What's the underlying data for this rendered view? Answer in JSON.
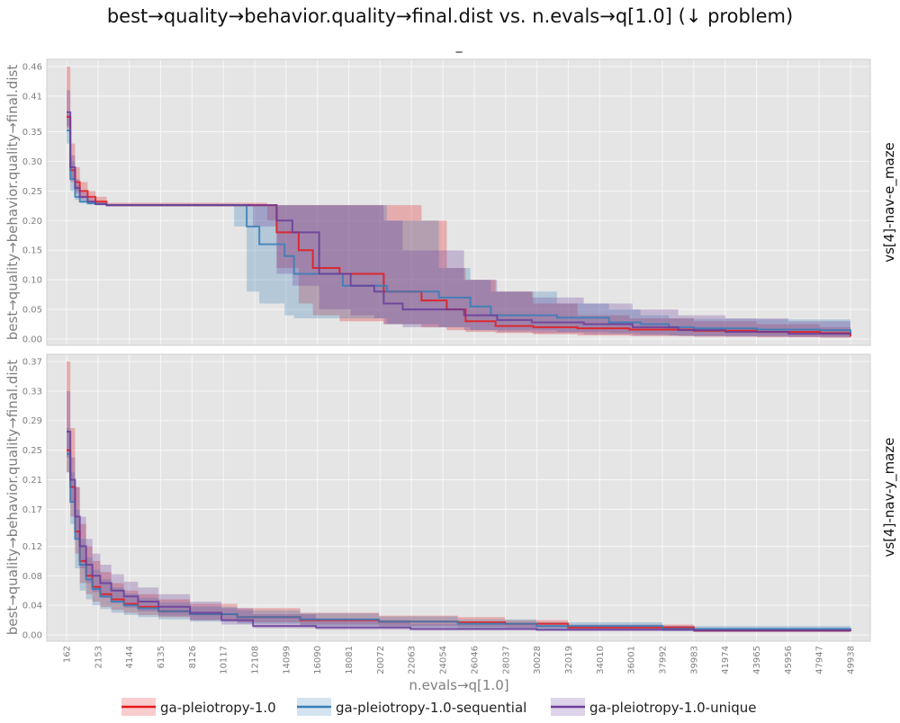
{
  "title": "best→quality→behavior.quality→final.dist vs. n.evals→q[1.0] (↓ problem)",
  "subtitle": "_",
  "colors": {
    "panel_bg": "#e5e5e5",
    "grid": "#f7f7f7",
    "axis_text": "#7f7f7f",
    "series": [
      "#e41a1c",
      "#377eb8",
      "#6a3d9a"
    ]
  },
  "chart_data": {
    "type": "line",
    "xlabel": "n.evals→q[1.0]",
    "ylabel": "best→quality→behavior.quality→final.dist",
    "xlim": [
      162,
      49938
    ],
    "x_ticks": [
      "162",
      "2153",
      "4144",
      "6135",
      "8126",
      "10117",
      "12108",
      "14099",
      "16090",
      "18081",
      "20072",
      "22063",
      "24054",
      "26046",
      "28037",
      "30028",
      "32019",
      "34010",
      "36001",
      "37992",
      "39983",
      "41974",
      "43965",
      "45956",
      "47947",
      "49938"
    ],
    "grid": true,
    "legend_position": "bottom",
    "legend": [
      "ga-pleiotropy-1.0",
      "ga-pleiotropy-1.0-sequential",
      "ga-pleiotropy-1.0-unique"
    ],
    "facets": [
      {
        "label": "vs[4]-nav-e_maze",
        "ylim": [
          0,
          0.46
        ],
        "y_ticks": [
          "0.00",
          "0.05",
          "0.10",
          "0.15",
          "0.20",
          "0.25",
          "0.30",
          "0.35",
          "0.41",
          "0.46"
        ],
        "series": [
          {
            "name": "ga-pleiotropy-1.0",
            "x": [
              162,
              400,
              700,
              1000,
              1500,
              2000,
              2700,
              12900,
              13500,
              14900,
              15800,
              17500,
              20300,
              22700,
              24300,
              25500,
              27400,
              29800,
              32600,
              35900,
              40000,
              44000,
              48000,
              49938
            ],
            "y": [
              0.375,
              0.285,
              0.265,
              0.25,
              0.24,
              0.232,
              0.226,
              0.226,
              0.18,
              0.15,
              0.12,
              0.11,
              0.08,
              0.065,
              0.05,
              0.03,
              0.022,
              0.02,
              0.018,
              0.016,
              0.014,
              0.012,
              0.01,
              0.004
            ],
            "lo": [
              0.355,
              0.265,
              0.25,
              0.238,
              0.23,
              0.226,
              0.224,
              0.2,
              0.12,
              0.06,
              0.04,
              0.03,
              0.025,
              0.02,
              0.015,
              0.012,
              0.01,
              0.008,
              0.006,
              0.005,
              0.004,
              0.003,
              0.002,
              0.002
            ],
            "hi": [
              0.46,
              0.33,
              0.29,
              0.265,
              0.25,
              0.24,
              0.23,
              0.226,
              0.226,
              0.226,
              0.226,
              0.226,
              0.226,
              0.2,
              0.12,
              0.1,
              0.08,
              0.06,
              0.04,
              0.035,
              0.03,
              0.025,
              0.02,
              0.015
            ]
          },
          {
            "name": "ga-pleiotropy-1.0-sequential",
            "x": [
              162,
              400,
              700,
              1000,
              1500,
              2000,
              2700,
              10800,
              11600,
              12400,
              14000,
              14600,
              17700,
              20500,
              23800,
              25800,
              27100,
              31300,
              34600,
              36600,
              38400,
              40000,
              44000,
              48000,
              49938
            ],
            "y": [
              0.352,
              0.27,
              0.24,
              0.232,
              0.229,
              0.228,
              0.226,
              0.226,
              0.19,
              0.16,
              0.14,
              0.11,
              0.09,
              0.08,
              0.07,
              0.055,
              0.04,
              0.036,
              0.028,
              0.025,
              0.02,
              0.018,
              0.016,
              0.015,
              0.01
            ],
            "lo": [
              0.33,
              0.25,
              0.235,
              0.229,
              0.227,
              0.226,
              0.225,
              0.19,
              0.08,
              0.06,
              0.04,
              0.035,
              0.035,
              0.025,
              0.02,
              0.015,
              0.015,
              0.012,
              0.01,
              0.008,
              0.006,
              0.005,
              0.005,
              0.004,
              0.004
            ],
            "hi": [
              0.38,
              0.3,
              0.26,
              0.24,
              0.232,
              0.23,
              0.228,
              0.226,
              0.226,
              0.226,
              0.226,
              0.226,
              0.226,
              0.2,
              0.12,
              0.1,
              0.08,
              0.06,
              0.05,
              0.04,
              0.035,
              0.034,
              0.033,
              0.033,
              0.033
            ]
          },
          {
            "name": "ga-pleiotropy-1.0-unique",
            "x": [
              162,
              400,
              700,
              1000,
              1500,
              2000,
              2700,
              12000,
              13500,
              14500,
              16200,
              18200,
              19700,
              20300,
              21500,
              25400,
              27500,
              29700,
              33000,
              36100,
              39000,
              42000,
              46000,
              49938
            ],
            "y": [
              0.383,
              0.29,
              0.255,
              0.24,
              0.232,
              0.228,
              0.226,
              0.226,
              0.2,
              0.18,
              0.11,
              0.09,
              0.08,
              0.06,
              0.05,
              0.04,
              0.032,
              0.028,
              0.025,
              0.02,
              0.015,
              0.012,
              0.009,
              0.008
            ],
            "lo": [
              0.36,
              0.27,
              0.245,
              0.235,
              0.228,
              0.226,
              0.224,
              0.19,
              0.11,
              0.09,
              0.05,
              0.04,
              0.035,
              0.025,
              0.02,
              0.015,
              0.012,
              0.01,
              0.008,
              0.006,
              0.005,
              0.004,
              0.003,
              0.003
            ],
            "hi": [
              0.42,
              0.31,
              0.27,
              0.25,
              0.238,
              0.232,
              0.228,
              0.226,
              0.226,
              0.226,
              0.226,
              0.226,
              0.226,
              0.2,
              0.15,
              0.1,
              0.08,
              0.07,
              0.06,
              0.05,
              0.04,
              0.035,
              0.03,
              0.02
            ]
          }
        ]
      },
      {
        "label": "vs[4]-nav-y_maze",
        "ylim": [
          0,
          0.37
        ],
        "y_ticks": [
          "0.00",
          "0.04",
          "0.08",
          "0.12",
          "0.17",
          "0.21",
          "0.25",
          "0.29",
          "0.33",
          "0.37"
        ],
        "series": [
          {
            "name": "ga-pleiotropy-1.0",
            "x": [
              162,
              400,
              700,
              1000,
              1400,
              1800,
              2300,
              3000,
              3800,
              4700,
              6000,
              8000,
              11000,
              15000,
              20000,
              25000,
              28000,
              32000,
              40000,
              49938
            ],
            "y": [
              0.25,
              0.2,
              0.14,
              0.1,
              0.08,
              0.065,
              0.055,
              0.048,
              0.042,
              0.038,
              0.032,
              0.028,
              0.024,
              0.02,
              0.018,
              0.017,
              0.015,
              0.01,
              0.006,
              0.005
            ],
            "lo": [
              0.22,
              0.16,
              0.11,
              0.07,
              0.055,
              0.045,
              0.038,
              0.034,
              0.03,
              0.027,
              0.024,
              0.02,
              0.017,
              0.014,
              0.012,
              0.011,
              0.01,
              0.007,
              0.004,
              0.003
            ],
            "hi": [
              0.37,
              0.28,
              0.2,
              0.15,
              0.12,
              0.1,
              0.085,
              0.07,
              0.06,
              0.055,
              0.048,
              0.042,
              0.036,
              0.03,
              0.026,
              0.024,
              0.02,
              0.014,
              0.009,
              0.007
            ]
          },
          {
            "name": "ga-pleiotropy-1.0-sequential",
            "x": [
              162,
              400,
              700,
              1000,
              1400,
              1800,
              2300,
              3000,
              3800,
              4700,
              6000,
              8000,
              11000,
              15000,
              20000,
              25000,
              30000,
              38000,
              49938
            ],
            "y": [
              0.245,
              0.18,
              0.13,
              0.095,
              0.075,
              0.062,
              0.052,
              0.045,
              0.04,
              0.036,
              0.032,
              0.028,
              0.024,
              0.021,
              0.018,
              0.015,
              0.012,
              0.008,
              0.006
            ],
            "lo": [
              0.22,
              0.15,
              0.09,
              0.06,
              0.048,
              0.04,
              0.035,
              0.03,
              0.027,
              0.024,
              0.021,
              0.018,
              0.015,
              0.012,
              0.01,
              0.008,
              0.007,
              0.005,
              0.004
            ],
            "hi": [
              0.28,
              0.22,
              0.17,
              0.13,
              0.105,
              0.088,
              0.075,
              0.064,
              0.056,
              0.05,
              0.044,
              0.038,
              0.033,
              0.029,
              0.025,
              0.021,
              0.017,
              0.012,
              0.008
            ]
          },
          {
            "name": "ga-pleiotropy-1.0-unique",
            "x": [
              162,
              400,
              700,
              1000,
              1400,
              1800,
              2300,
              3000,
              3800,
              4700,
              6000,
              8000,
              10000,
              12000,
              16000,
              22000,
              30000,
              40000,
              49938
            ],
            "y": [
              0.275,
              0.21,
              0.16,
              0.12,
              0.095,
              0.08,
              0.07,
              0.06,
              0.052,
              0.045,
              0.038,
              0.03,
              0.02,
              0.012,
              0.01,
              0.008,
              0.007,
              0.006,
              0.005
            ],
            "lo": [
              0.24,
              0.18,
              0.13,
              0.09,
              0.07,
              0.058,
              0.05,
              0.043,
              0.037,
              0.032,
              0.026,
              0.02,
              0.014,
              0.009,
              0.007,
              0.006,
              0.005,
              0.004,
              0.003
            ],
            "hi": [
              0.33,
              0.24,
              0.2,
              0.16,
              0.13,
              0.11,
              0.095,
              0.082,
              0.072,
              0.064,
              0.055,
              0.045,
              0.036,
              0.028,
              0.02,
              0.015,
              0.012,
              0.009,
              0.007
            ]
          }
        ]
      }
    ]
  }
}
